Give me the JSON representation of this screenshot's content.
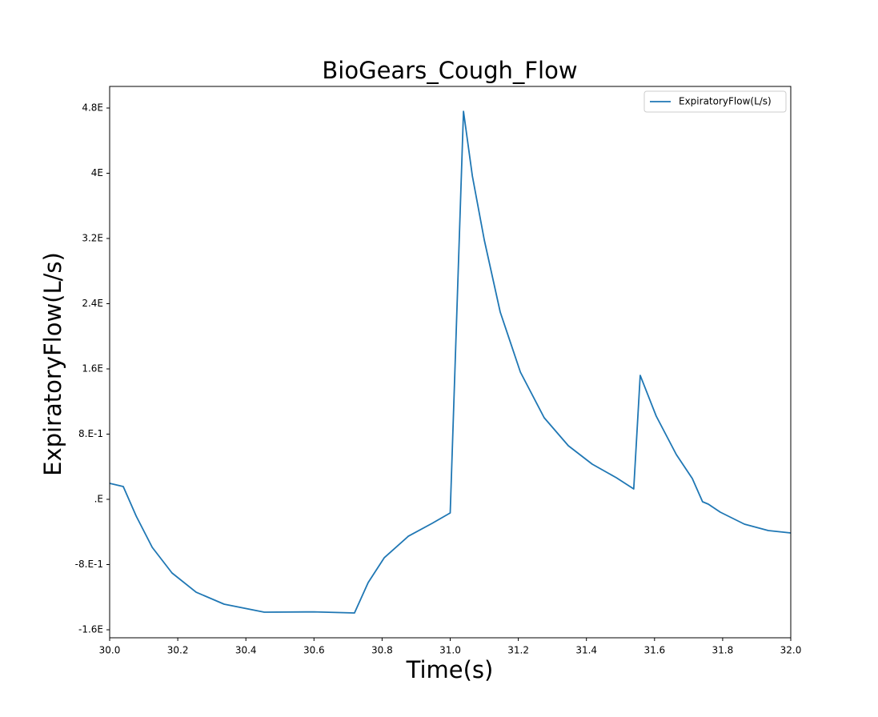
{
  "chart_data": {
    "type": "line",
    "title": "BioGears_Cough_Flow",
    "x_label": "Time(s)",
    "y_label": "ExpiratoryFlow(L/s)",
    "x": [
      30.0,
      30.04,
      30.078,
      30.125,
      30.183,
      30.254,
      30.336,
      30.454,
      30.6,
      30.719,
      30.759,
      30.806,
      30.877,
      30.947,
      31.0,
      31.039,
      31.065,
      31.1,
      31.147,
      31.206,
      31.276,
      31.347,
      31.417,
      31.488,
      31.539,
      31.558,
      31.605,
      31.664,
      31.711,
      31.741,
      31.758,
      31.793,
      31.864,
      31.934,
      32.0
    ],
    "series": [
      {
        "name": "ExpiratoryFlow(L/s)",
        "color": "#1f77b4",
        "values": [
          0.196,
          0.157,
          -0.206,
          -0.589,
          -0.903,
          -1.139,
          -1.286,
          -1.384,
          -1.38,
          -1.394,
          -1.021,
          -0.717,
          -0.452,
          -0.294,
          -0.167,
          4.76,
          3.966,
          3.18,
          2.297,
          1.561,
          1.001,
          0.658,
          0.432,
          0.265,
          0.128,
          1.521,
          1.021,
          0.55,
          0.255,
          -0.029,
          -0.059,
          -0.157,
          -0.304,
          -0.383,
          -0.412
        ]
      }
    ],
    "xlim": [
      30.0,
      32.0
    ],
    "xticks": [
      {
        "value": 30.0,
        "label": "30.0"
      },
      30.2,
      30.4,
      30.6,
      30.8,
      {
        "value": 31.0,
        "label": "31.0"
      },
      31.2,
      31.4,
      31.6,
      31.8,
      {
        "value": 32.0,
        "label": "32.0"
      }
    ],
    "ylim": [
      -1.698,
      5.065
    ],
    "yticks": [
      {
        "value": -1.6,
        "label": "-1.6E"
      },
      {
        "value": -0.8,
        "label": "-8.E-1"
      },
      {
        "value": 0,
        "label": ".E"
      },
      {
        "value": 0.8,
        "label": "8.E-1"
      },
      {
        "value": 1.6,
        "label": "1.6E"
      },
      {
        "value": 2.4,
        "label": "2.4E"
      },
      {
        "value": 3.2,
        "label": "3.2E"
      },
      {
        "value": 4.0,
        "label": "4E"
      },
      {
        "value": 4.8,
        "label": "4.8E"
      }
    ],
    "legend": "upper right",
    "grid": false
  }
}
